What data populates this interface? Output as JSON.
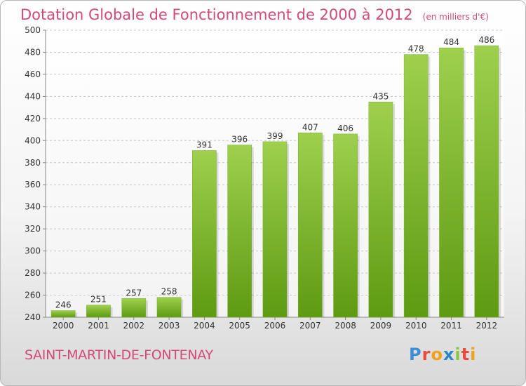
{
  "title": "Dotation Globale de Fonctionnement de 2000 à 2012",
  "subtitle": "(en milliers d'€)",
  "commune": "SAINT-MARTIN-DE-FONTENAY",
  "logo": {
    "text": "Proxiti",
    "letters": [
      {
        "ch": "P",
        "color": "#3b8fd6"
      },
      {
        "ch": "r",
        "color": "#e74c3c"
      },
      {
        "ch": "o",
        "color": "#f0a21a"
      },
      {
        "ch": "x",
        "color": "#2e86c1"
      },
      {
        "ch": "i",
        "color": "#8cc63f"
      },
      {
        "ch": "t",
        "color": "#e74c3c"
      },
      {
        "ch": "i",
        "color": "#f0a21a"
      }
    ]
  },
  "colors": {
    "bar_top": "#9ed04e",
    "bar_bottom": "#5e9a12",
    "text_accent": "#d2497a",
    "axis_text": "#333333",
    "grid": "#c8c8c8"
  },
  "chart_data": {
    "type": "bar",
    "categories": [
      "2000",
      "2001",
      "2002",
      "2003",
      "2004",
      "2005",
      "2006",
      "2007",
      "2008",
      "2009",
      "2010",
      "2011",
      "2012"
    ],
    "values": [
      246,
      251,
      257,
      258,
      391,
      396,
      399,
      407,
      406,
      435,
      478,
      484,
      486
    ],
    "title": "Dotation Globale de Fonctionnement de 2000 à 2012",
    "subtitle": "(en milliers d'€)",
    "xlabel": "",
    "ylabel": "",
    "ylim": [
      240,
      500
    ],
    "yticks": [
      240,
      260,
      280,
      300,
      320,
      340,
      360,
      380,
      400,
      420,
      440,
      460,
      480,
      500
    ],
    "grid": true,
    "data_labels": true
  }
}
